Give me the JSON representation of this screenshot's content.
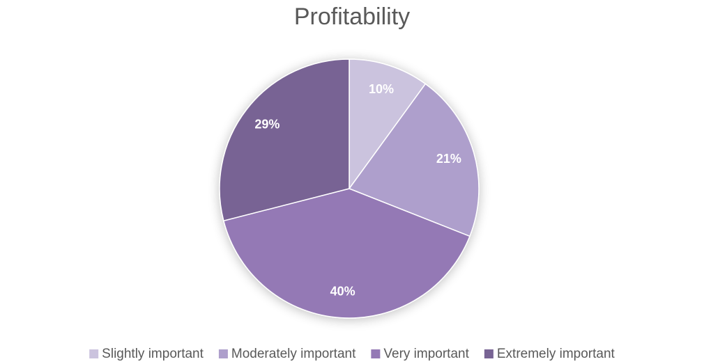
{
  "chart_data": {
    "type": "pie",
    "title": "Profitability",
    "categories": [
      "Slightly important",
      "Moderately important",
      "Very important",
      "Extremely important"
    ],
    "values": [
      10,
      21,
      40,
      29
    ],
    "value_labels": [
      "10%",
      "21%",
      "40%",
      "29%"
    ],
    "colors": [
      "#cbc3de",
      "#ae9fcc",
      "#9479b5",
      "#786494"
    ],
    "legend": "bottom"
  }
}
